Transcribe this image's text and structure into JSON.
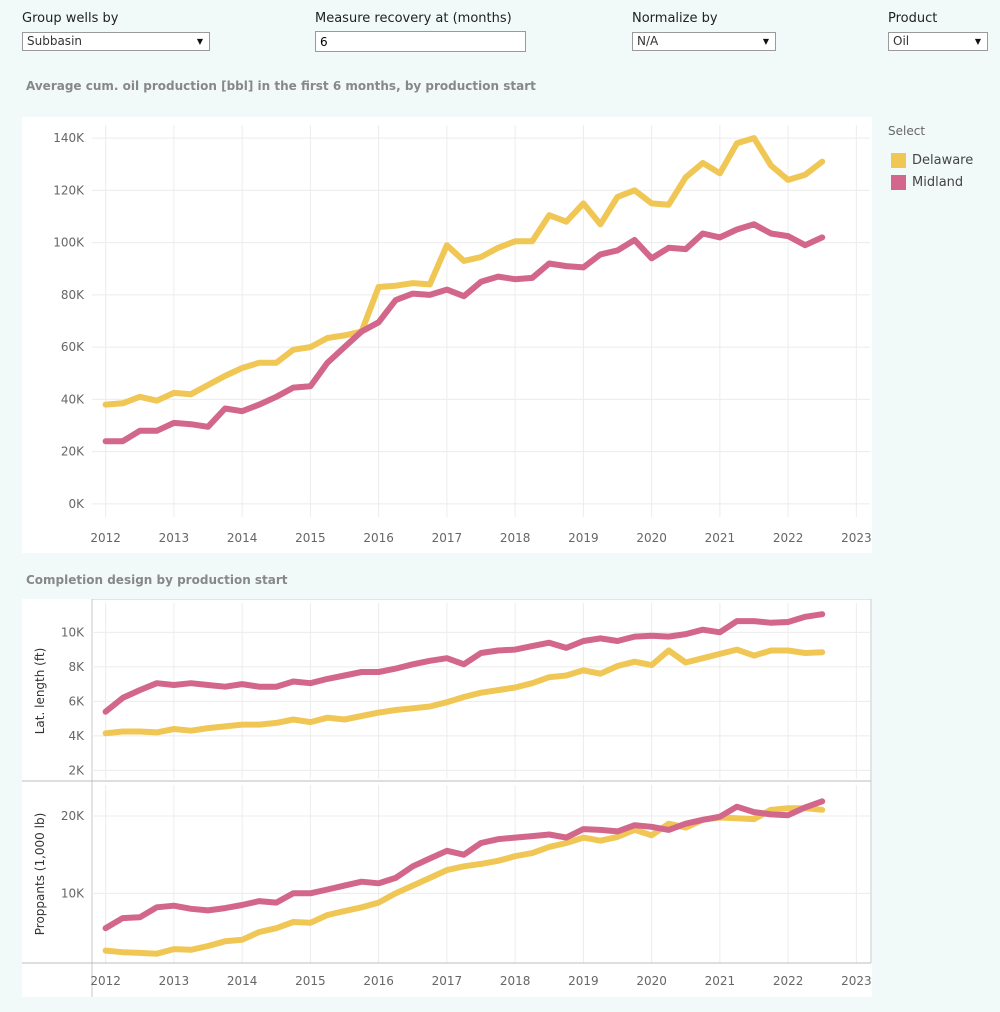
{
  "controls": {
    "group_by": {
      "label": "Group wells by",
      "value": "Subbasin"
    },
    "recovery": {
      "label": "Measure recovery at (months)",
      "value": "6"
    },
    "normalize": {
      "label": "Normalize by",
      "value": "N/A"
    },
    "product": {
      "label": "Product",
      "value": "Oil"
    }
  },
  "legend": {
    "title": "Select",
    "items": [
      {
        "name": "Delaware",
        "color": "#f0c755"
      },
      {
        "name": "Midland",
        "color": "#d2668b"
      }
    ]
  },
  "colors": {
    "delaware": "#f0c755",
    "midland": "#d2668b"
  },
  "chart_data": [
    {
      "type": "line",
      "title": "Average cum. oil production [bbl] in the first 6 months, by production start",
      "xlabel": "",
      "ylabel": "",
      "x_ticks": [
        "2012",
        "2013",
        "2014",
        "2015",
        "2016",
        "2017",
        "2018",
        "2019",
        "2020",
        "2021",
        "2022",
        "2023"
      ],
      "y_ticks": [
        "0K",
        "20K",
        "40K",
        "60K",
        "80K",
        "100K",
        "120K",
        "140K"
      ],
      "xlim": [
        2011.8,
        2023.2
      ],
      "ylim": [
        -5000,
        145000
      ],
      "grid": true,
      "legend": "right",
      "x": [
        2012.0,
        2012.25,
        2012.5,
        2012.75,
        2013.0,
        2013.25,
        2013.5,
        2013.75,
        2014.0,
        2014.25,
        2014.5,
        2014.75,
        2015.0,
        2015.25,
        2015.5,
        2015.75,
        2016.0,
        2016.25,
        2016.5,
        2016.75,
        2017.0,
        2017.25,
        2017.5,
        2017.75,
        2018.0,
        2018.25,
        2018.5,
        2018.75,
        2019.0,
        2019.25,
        2019.5,
        2019.75,
        2020.0,
        2020.25,
        2020.5,
        2020.75,
        2021.0,
        2021.25,
        2021.5,
        2021.75,
        2022.0,
        2022.25,
        2022.5
      ],
      "series": [
        {
          "name": "Delaware",
          "values": [
            38000,
            38500,
            41000,
            39500,
            42500,
            42000,
            45500,
            49000,
            52000,
            54000,
            54000,
            59000,
            60000,
            63500,
            64500,
            66000,
            83000,
            83500,
            84500,
            84000,
            99000,
            93000,
            94500,
            98000,
            100500,
            100500,
            110500,
            108000,
            115000,
            107000,
            117500,
            120000,
            115000,
            114500,
            125000,
            130500,
            126500,
            138000,
            140000,
            129500,
            124000,
            126000,
            131000
          ]
        },
        {
          "name": "Midland",
          "values": [
            24000,
            24000,
            28000,
            28000,
            31000,
            30500,
            29500,
            36500,
            35500,
            38000,
            41000,
            44500,
            45000,
            54000,
            60000,
            66000,
            69500,
            78000,
            80500,
            80000,
            82000,
            79500,
            85000,
            87000,
            86000,
            86500,
            92000,
            91000,
            90500,
            95500,
            97000,
            101000,
            94000,
            98000,
            97500,
            103500,
            102000,
            105000,
            107000,
            103500,
            102500,
            99000,
            102000
          ]
        }
      ]
    },
    {
      "type": "line",
      "title": "Completion design by production start",
      "xlabel": "",
      "ylabel": "Lat. length (ft)",
      "y_ticks": [
        "2K",
        "4K",
        "6K",
        "8K",
        "10K"
      ],
      "xlim": [
        2011.8,
        2023.2
      ],
      "ylim": [
        1500,
        11700
      ],
      "grid": true,
      "x": [
        2012.0,
        2012.25,
        2012.5,
        2012.75,
        2013.0,
        2013.25,
        2013.5,
        2013.75,
        2014.0,
        2014.25,
        2014.5,
        2014.75,
        2015.0,
        2015.25,
        2015.5,
        2015.75,
        2016.0,
        2016.25,
        2016.5,
        2016.75,
        2017.0,
        2017.25,
        2017.5,
        2017.75,
        2018.0,
        2018.25,
        2018.5,
        2018.75,
        2019.0,
        2019.25,
        2019.5,
        2019.75,
        2020.0,
        2020.25,
        2020.5,
        2020.75,
        2021.0,
        2021.25,
        2021.5,
        2021.75,
        2022.0,
        2022.25,
        2022.5
      ],
      "series": [
        {
          "name": "Delaware",
          "values": [
            4150,
            4250,
            4250,
            4200,
            4400,
            4300,
            4450,
            4550,
            4650,
            4650,
            4750,
            4950,
            4800,
            5050,
            4950,
            5150,
            5350,
            5500,
            5600,
            5700,
            5950,
            6250,
            6500,
            6650,
            6800,
            7050,
            7400,
            7500,
            7800,
            7600,
            8050,
            8300,
            8100,
            8950,
            8250,
            8500,
            8750,
            9000,
            8650,
            8950,
            8950,
            8800,
            8850
          ]
        },
        {
          "name": "Midland",
          "values": [
            5400,
            6200,
            6650,
            7050,
            6950,
            7050,
            6950,
            6850,
            7000,
            6850,
            6850,
            7150,
            7050,
            7300,
            7500,
            7700,
            7700,
            7900,
            8150,
            8350,
            8500,
            8150,
            8800,
            8950,
            9000,
            9200,
            9400,
            9100,
            9500,
            9650,
            9500,
            9750,
            9800,
            9750,
            9900,
            10150,
            10000,
            10650,
            10650,
            10550,
            10600,
            10900,
            11050
          ]
        }
      ]
    },
    {
      "type": "line",
      "title": "",
      "xlabel": "",
      "ylabel": "Proppants (1,000 lb)",
      "x_ticks": [
        "2012",
        "2013",
        "2014",
        "2015",
        "2016",
        "2017",
        "2018",
        "2019",
        "2020",
        "2021",
        "2022",
        "2023"
      ],
      "y_ticks": [
        "10K",
        "20K"
      ],
      "xlim": [
        2011.8,
        2023.2
      ],
      "ylim": [
        1000,
        24000
      ],
      "grid": true,
      "x": [
        2012.0,
        2012.25,
        2012.5,
        2012.75,
        2013.0,
        2013.25,
        2013.5,
        2013.75,
        2014.0,
        2014.25,
        2014.5,
        2014.75,
        2015.0,
        2015.25,
        2015.5,
        2015.75,
        2016.0,
        2016.25,
        2016.5,
        2016.75,
        2017.0,
        2017.25,
        2017.5,
        2017.75,
        2018.0,
        2018.25,
        2018.5,
        2018.75,
        2019.0,
        2019.25,
        2019.5,
        2019.75,
        2020.0,
        2020.25,
        2020.5,
        2020.75,
        2021.0,
        2021.25,
        2021.5,
        2021.75,
        2022.0,
        2022.25,
        2022.5
      ],
      "series": [
        {
          "name": "Delaware",
          "values": [
            2600,
            2400,
            2300,
            2200,
            2800,
            2700,
            3200,
            3800,
            4000,
            5000,
            5500,
            6300,
            6200,
            7200,
            7700,
            8200,
            8800,
            10000,
            11000,
            12000,
            13000,
            13500,
            13800,
            14200,
            14800,
            15200,
            16000,
            16500,
            17200,
            16800,
            17300,
            18200,
            17500,
            19000,
            18500,
            19500,
            19800,
            19700,
            19600,
            20800,
            21000,
            21000,
            20800
          ]
        },
        {
          "name": "Midland",
          "values": [
            5500,
            6800,
            6900,
            8200,
            8400,
            8000,
            7800,
            8100,
            8500,
            9000,
            8800,
            10000,
            10000,
            10500,
            11000,
            11500,
            11300,
            12000,
            13500,
            14500,
            15500,
            15000,
            16500,
            17000,
            17200,
            17400,
            17600,
            17200,
            18300,
            18200,
            18000,
            18800,
            18600,
            18200,
            19000,
            19500,
            19900,
            21200,
            20500,
            20200,
            20100,
            21100,
            21900
          ]
        }
      ]
    }
  ]
}
